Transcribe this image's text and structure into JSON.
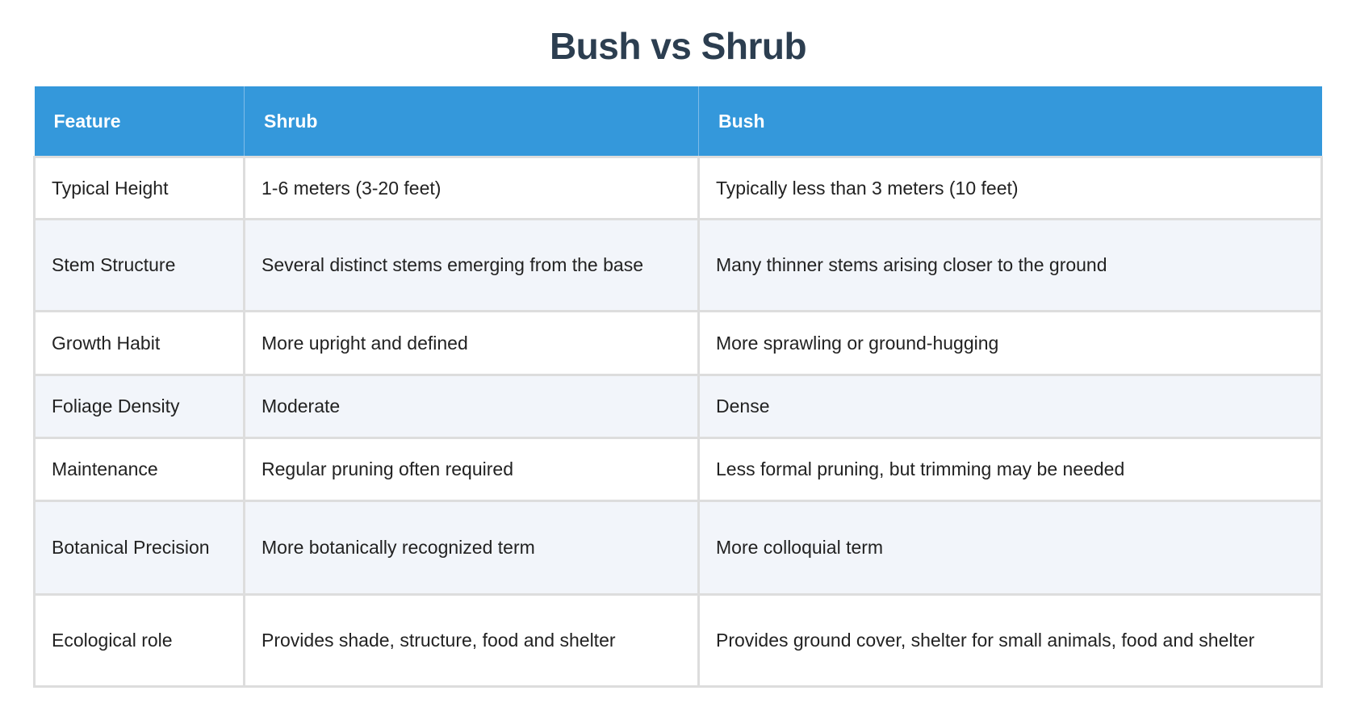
{
  "title": "Bush vs Shrub",
  "table": {
    "headers": [
      "Feature",
      "Shrub",
      "Bush"
    ],
    "rows": [
      [
        "Typical Height",
        "1-6 meters (3-20 feet)",
        "Typically less than 3 meters (10 feet)"
      ],
      [
        "Stem Structure",
        "Several distinct stems emerging from the base",
        "Many thinner stems arising closer to the ground"
      ],
      [
        "Growth Habit",
        "More upright and defined",
        "More sprawling or ground-hugging"
      ],
      [
        "Foliage Density",
        "Moderate",
        "Dense"
      ],
      [
        "Maintenance",
        "Regular pruning often required",
        "Less formal pruning, but trimming may be needed"
      ],
      [
        "Botanical Precision",
        "More botanically recognized term",
        "More colloquial term"
      ],
      [
        "Ecological role",
        "Provides shade, structure, food and shelter",
        "Provides ground cover, shelter for small animals, food and shelter"
      ]
    ]
  },
  "colors": {
    "header_bg": "#3498db",
    "title": "#2c3e50",
    "alt_row": "#f2f5fa"
  }
}
